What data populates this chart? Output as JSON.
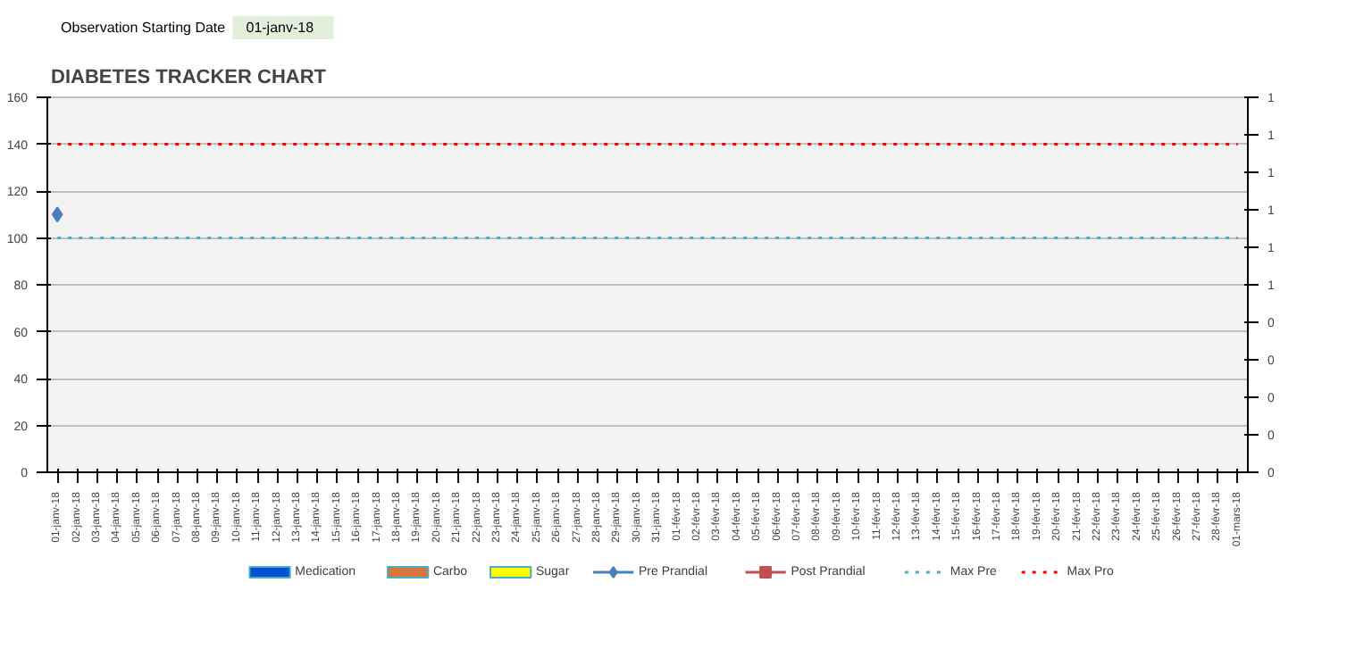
{
  "chart_data": {
    "type": "bar",
    "title": "DIABETES TRACKER  CHART",
    "annotations": [
      "Observation Starting Date",
      "01-janv-18"
    ],
    "categories": [
      "01-janv-18",
      "02-janv-18",
      "03-janv-18",
      "04-janv-18",
      "05-janv-18",
      "06-janv-18",
      "07-janv-18",
      "08-janv-18",
      "09-janv-18",
      "10-janv-18",
      "11-janv-18",
      "12-janv-18",
      "13-janv-18",
      "14-janv-18",
      "15-janv-18",
      "16-janv-18",
      "17-janv-18",
      "18-janv-18",
      "19-janv-18",
      "20-janv-18",
      "21-janv-18",
      "22-janv-18",
      "23-janv-18",
      "24-janv-18",
      "25-janv-18",
      "26-janv-18",
      "27-janv-18",
      "28-janv-18",
      "29-janv-18",
      "30-janv-18",
      "31-janv-18",
      "01-févr-18",
      "02-févr-18",
      "03-févr-18",
      "04-févr-18",
      "05-févr-18",
      "06-févr-18",
      "07-févr-18",
      "08-févr-18",
      "09-févr-18",
      "10-févr-18",
      "11-févr-18",
      "12-févr-18",
      "13-févr-18",
      "14-févr-18",
      "15-févr-18",
      "16-févr-18",
      "17-févr-18",
      "18-févr-18",
      "19-févr-18",
      "20-févr-18",
      "21-févr-18",
      "22-févr-18",
      "23-févr-18",
      "24-févr-18",
      "25-févr-18",
      "26-févr-18",
      "27-févr-18",
      "28-févr-18",
      "01-mars-18"
    ],
    "series": [
      {
        "name": "Medication",
        "color": "#0050d0",
        "values": [
          null,
          null,
          null,
          null,
          null,
          null,
          null,
          null,
          null,
          null,
          null,
          null,
          null,
          null,
          null,
          null,
          null,
          null,
          null,
          null,
          null,
          null,
          null,
          null,
          null,
          null,
          null,
          null,
          null,
          null,
          null,
          null,
          null,
          null,
          null,
          null,
          null,
          null,
          null,
          null,
          null,
          null,
          null,
          null,
          null,
          null,
          null,
          null,
          null,
          null,
          null,
          null,
          null,
          null,
          null,
          null,
          null,
          null,
          null,
          null
        ]
      },
      {
        "name": "Carbo",
        "color": "#d9773a",
        "values": [
          null,
          null,
          null,
          null,
          null,
          null,
          null,
          null,
          null,
          null,
          null,
          null,
          null,
          null,
          null,
          null,
          null,
          null,
          null,
          null,
          null,
          null,
          null,
          null,
          null,
          null,
          null,
          null,
          null,
          null,
          null,
          null,
          null,
          null,
          null,
          null,
          null,
          null,
          null,
          null,
          null,
          null,
          null,
          null,
          null,
          null,
          null,
          null,
          null,
          null,
          null,
          null,
          null,
          null,
          null,
          null,
          null,
          null,
          null,
          null
        ]
      },
      {
        "name": "Sugar",
        "color": "#ffff00",
        "values": [
          null,
          null,
          null,
          null,
          null,
          null,
          null,
          null,
          null,
          null,
          null,
          null,
          null,
          null,
          null,
          null,
          null,
          null,
          null,
          null,
          null,
          null,
          null,
          null,
          null,
          null,
          null,
          null,
          null,
          null,
          null,
          null,
          null,
          null,
          null,
          null,
          null,
          null,
          null,
          null,
          null,
          null,
          null,
          null,
          null,
          null,
          null,
          null,
          null,
          null,
          null,
          null,
          null,
          null,
          null,
          null,
          null,
          null,
          null,
          null
        ]
      },
      {
        "name": "Pre Prandial",
        "type": "line",
        "marker": "diamond",
        "line_style": "solid",
        "color": "#4a7ebb",
        "values": [
          110,
          null,
          null,
          null,
          null,
          null,
          null,
          null,
          null,
          null,
          null,
          null,
          null,
          null,
          null,
          null,
          null,
          null,
          null,
          null,
          null,
          null,
          null,
          null,
          null,
          null,
          null,
          null,
          null,
          null,
          null,
          null,
          null,
          null,
          null,
          null,
          null,
          null,
          null,
          null,
          null,
          null,
          null,
          null,
          null,
          null,
          null,
          null,
          null,
          null,
          null,
          null,
          null,
          null,
          null,
          null,
          null,
          null,
          null,
          null
        ]
      },
      {
        "name": "Post Prandial",
        "type": "line",
        "marker": "square",
        "line_style": "solid",
        "color": "#c0504d",
        "values": [
          null,
          null,
          null,
          null,
          null,
          null,
          null,
          null,
          null,
          null,
          null,
          null,
          null,
          null,
          null,
          null,
          null,
          null,
          null,
          null,
          null,
          null,
          null,
          null,
          null,
          null,
          null,
          null,
          null,
          null,
          null,
          null,
          null,
          null,
          null,
          null,
          null,
          null,
          null,
          null,
          null,
          null,
          null,
          null,
          null,
          null,
          null,
          null,
          null,
          null,
          null,
          null,
          null,
          null,
          null,
          null,
          null,
          null,
          null,
          null
        ]
      },
      {
        "name": "Max Pre",
        "type": "line",
        "marker": "none",
        "line_style": "dotted",
        "color": "#4bacc6",
        "values": [
          100,
          100,
          100,
          100,
          100,
          100,
          100,
          100,
          100,
          100,
          100,
          100,
          100,
          100,
          100,
          100,
          100,
          100,
          100,
          100,
          100,
          100,
          100,
          100,
          100,
          100,
          100,
          100,
          100,
          100,
          100,
          100,
          100,
          100,
          100,
          100,
          100,
          100,
          100,
          100,
          100,
          100,
          100,
          100,
          100,
          100,
          100,
          100,
          100,
          100,
          100,
          100,
          100,
          100,
          100,
          100,
          100,
          100,
          100,
          100
        ]
      },
      {
        "name": "Max Pro",
        "type": "line",
        "marker": "none",
        "line_style": "dotted",
        "color": "#ff0000",
        "values": [
          140,
          140,
          140,
          140,
          140,
          140,
          140,
          140,
          140,
          140,
          140,
          140,
          140,
          140,
          140,
          140,
          140,
          140,
          140,
          140,
          140,
          140,
          140,
          140,
          140,
          140,
          140,
          140,
          140,
          140,
          140,
          140,
          140,
          140,
          140,
          140,
          140,
          140,
          140,
          140,
          140,
          140,
          140,
          140,
          140,
          140,
          140,
          140,
          140,
          140,
          140,
          140,
          140,
          140,
          140,
          140,
          140,
          140,
          140,
          140
        ]
      }
    ],
    "ylim": [
      0,
      160
    ],
    "yticks": [
      0,
      20,
      40,
      60,
      80,
      100,
      120,
      140,
      160
    ],
    "y2lim": [
      0,
      1
    ],
    "y2ticks": [
      {
        "value": 0,
        "label": "0"
      },
      {
        "value": 0.1,
        "label": "0"
      },
      {
        "value": 0.2,
        "label": "0"
      },
      {
        "value": 0.3,
        "label": "0"
      },
      {
        "value": 0.4,
        "label": "0"
      },
      {
        "value": 0.5,
        "label": "1"
      },
      {
        "value": 0.6,
        "label": "1"
      },
      {
        "value": 0.7,
        "label": "1"
      },
      {
        "value": 0.8,
        "label": "1"
      },
      {
        "value": 0.9,
        "label": "1"
      },
      {
        "value": 1,
        "label": "1"
      }
    ],
    "grid": "y",
    "legend": "bottom"
  }
}
